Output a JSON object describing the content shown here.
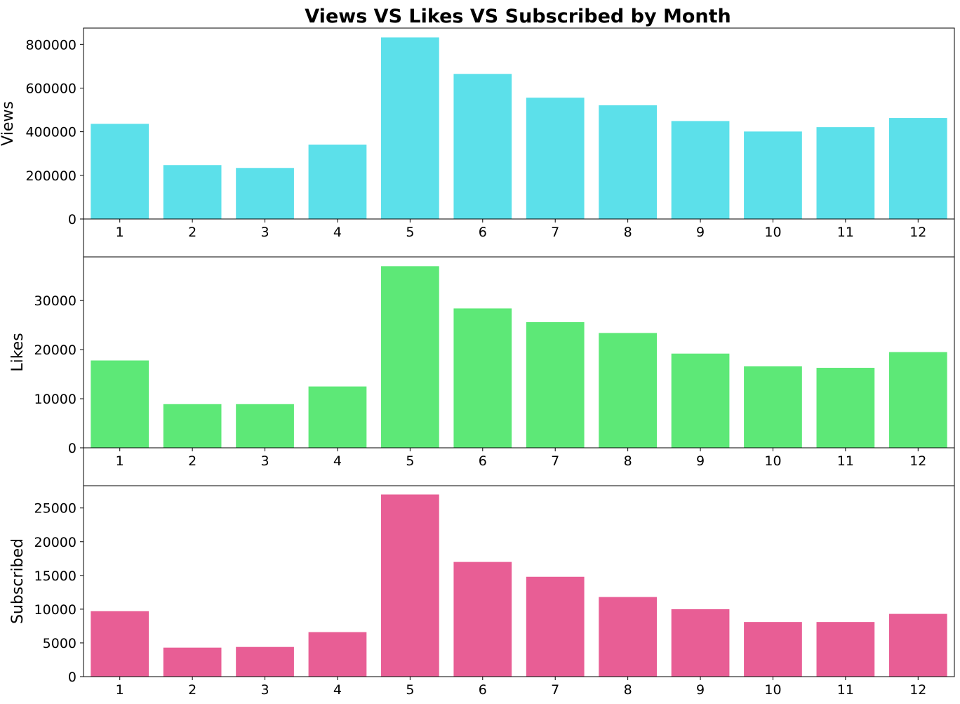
{
  "title": "Views VS Likes VS Subscribed by Month",
  "chart_data": [
    {
      "type": "bar",
      "ylabel": "Views",
      "color": "#5ce0ea",
      "categories": [
        "1",
        "2",
        "3",
        "4",
        "5",
        "6",
        "7",
        "8",
        "9",
        "10",
        "11",
        "12"
      ],
      "values": [
        436000,
        247000,
        234000,
        341000,
        832000,
        665000,
        556000,
        521000,
        449000,
        401000,
        421000,
        463000
      ],
      "ylim": [
        0,
        875000
      ],
      "yticks": [
        0,
        200000,
        400000,
        600000,
        800000
      ],
      "ytick_labels": [
        "0",
        "200000",
        "400000",
        "600000",
        "800000"
      ]
    },
    {
      "type": "bar",
      "ylabel": "Likes",
      "color": "#5de877",
      "categories": [
        "1",
        "2",
        "3",
        "4",
        "5",
        "6",
        "7",
        "8",
        "9",
        "10",
        "11",
        "12"
      ],
      "values": [
        17800,
        8900,
        8900,
        12500,
        37000,
        28400,
        25600,
        23400,
        19200,
        16600,
        16300,
        19500
      ],
      "ylim": [
        0,
        38900
      ],
      "yticks": [
        0,
        10000,
        20000,
        30000
      ],
      "ytick_labels": [
        "0",
        "10000",
        "20000",
        "30000"
      ]
    },
    {
      "type": "bar",
      "ylabel": "Subscribed",
      "color": "#e85e95",
      "categories": [
        "1",
        "2",
        "3",
        "4",
        "5",
        "6",
        "7",
        "8",
        "9",
        "10",
        "11",
        "12"
      ],
      "values": [
        9700,
        4300,
        4400,
        6600,
        27000,
        17000,
        14800,
        11800,
        10000,
        8100,
        8100,
        9300
      ],
      "ylim": [
        0,
        28300
      ],
      "yticks": [
        0,
        5000,
        10000,
        15000,
        20000,
        25000
      ],
      "ytick_labels": [
        "0",
        "5000",
        "10000",
        "15000",
        "20000",
        "25000"
      ]
    }
  ]
}
